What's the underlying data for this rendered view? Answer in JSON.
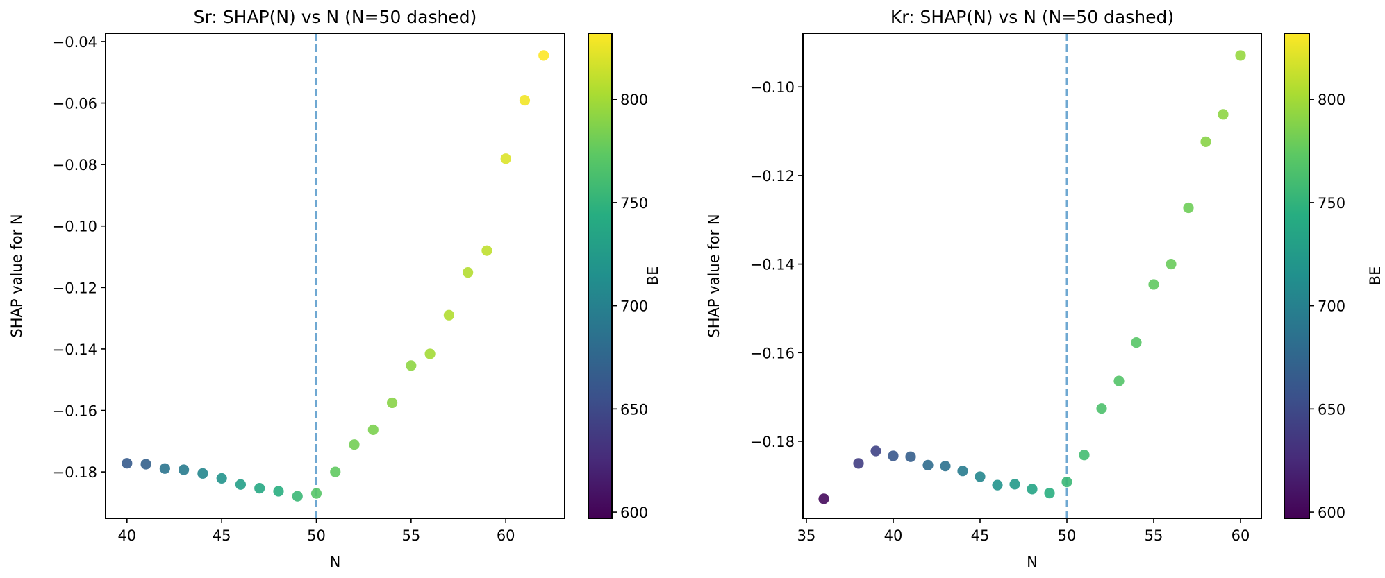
{
  "chart_data": [
    {
      "type": "scatter",
      "title": "Sr: SHAP(N) vs N (N=50 dashed)",
      "xlabel": "N",
      "ylabel": "SHAP value for N",
      "xlim": [
        38.87,
        63.11
      ],
      "ylim": [
        -0.1951,
        -0.0373
      ],
      "xticks": [
        40,
        45,
        50,
        55,
        60
      ],
      "xtick_labels": [
        "40",
        "45",
        "50",
        "55",
        "60"
      ],
      "yticks": [
        -0.18,
        -0.16,
        -0.14,
        -0.12,
        -0.1,
        -0.08,
        -0.06,
        -0.04
      ],
      "ytick_labels": [
        "−0.18",
        "−0.16",
        "−0.14",
        "−0.12",
        "−0.10",
        "−0.08",
        "−0.06",
        "−0.04"
      ],
      "grid": false,
      "reference_line": {
        "x": 50,
        "style": "dashed",
        "color": "#6fa8d2"
      },
      "colorbar": {
        "label": "BE",
        "colormap": "viridis",
        "range": [
          597,
          832
        ],
        "ticks": [
          600,
          650,
          700,
          750,
          800
        ],
        "tick_labels": [
          "600",
          "650",
          "700",
          "750",
          "800"
        ]
      },
      "points": [
        {
          "x": 40,
          "y": -0.1772,
          "c": 665
        },
        {
          "x": 41,
          "y": -0.1775,
          "c": 670
        },
        {
          "x": 42,
          "y": -0.1789,
          "c": 688
        },
        {
          "x": 43,
          "y": -0.1793,
          "c": 695
        },
        {
          "x": 44,
          "y": -0.1805,
          "c": 705
        },
        {
          "x": 45,
          "y": -0.1821,
          "c": 718
        },
        {
          "x": 46,
          "y": -0.1841,
          "c": 730
        },
        {
          "x": 47,
          "y": -0.1853,
          "c": 738
        },
        {
          "x": 48,
          "y": -0.1863,
          "c": 745
        },
        {
          "x": 49,
          "y": -0.1879,
          "c": 755
        },
        {
          "x": 50,
          "y": -0.187,
          "c": 770
        },
        {
          "x": 51,
          "y": -0.18,
          "c": 775
        },
        {
          "x": 52,
          "y": -0.1711,
          "c": 782
        },
        {
          "x": 53,
          "y": -0.1663,
          "c": 785
        },
        {
          "x": 54,
          "y": -0.1575,
          "c": 790
        },
        {
          "x": 55,
          "y": -0.1454,
          "c": 792
        },
        {
          "x": 56,
          "y": -0.1416,
          "c": 800
        },
        {
          "x": 57,
          "y": -0.129,
          "c": 805
        },
        {
          "x": 58,
          "y": -0.1151,
          "c": 806
        },
        {
          "x": 59,
          "y": -0.108,
          "c": 810
        },
        {
          "x": 60,
          "y": -0.0781,
          "c": 820
        },
        {
          "x": 61,
          "y": -0.0591,
          "c": 828
        },
        {
          "x": 62,
          "y": -0.0445,
          "c": 832
        }
      ]
    },
    {
      "type": "scatter",
      "title": "Kr: SHAP(N) vs N (N=50 dashed)",
      "xlabel": "N",
      "ylabel": "SHAP value for N",
      "xlim": [
        34.8,
        61.2
      ],
      "ylim": [
        -0.1974,
        -0.0879
      ],
      "xticks": [
        35,
        40,
        45,
        50,
        55,
        60
      ],
      "xtick_labels": [
        "35",
        "40",
        "45",
        "50",
        "55",
        "60"
      ],
      "yticks": [
        -0.18,
        -0.16,
        -0.14,
        -0.12,
        -0.1
      ],
      "ytick_labels": [
        "−0.18",
        "−0.16",
        "−0.14",
        "−0.12",
        "−0.10"
      ],
      "grid": false,
      "reference_line": {
        "x": 50,
        "style": "dashed",
        "color": "#6fa8d2"
      },
      "colorbar": {
        "label": "BE",
        "colormap": "viridis",
        "range": [
          597,
          832
        ],
        "ticks": [
          600,
          650,
          700,
          750,
          800
        ],
        "tick_labels": [
          "600",
          "650",
          "700",
          "750",
          "800"
        ]
      },
      "points": [
        {
          "x": 36,
          "y": -0.193,
          "c": 603
        },
        {
          "x": 38,
          "y": -0.185,
          "c": 640
        },
        {
          "x": 39,
          "y": -0.1822,
          "c": 645
        },
        {
          "x": 40,
          "y": -0.1833,
          "c": 662
        },
        {
          "x": 41,
          "y": -0.1835,
          "c": 668
        },
        {
          "x": 42,
          "y": -0.1854,
          "c": 680
        },
        {
          "x": 43,
          "y": -0.1856,
          "c": 685
        },
        {
          "x": 44,
          "y": -0.1867,
          "c": 695
        },
        {
          "x": 45,
          "y": -0.188,
          "c": 705
        },
        {
          "x": 46,
          "y": -0.1899,
          "c": 718
        },
        {
          "x": 47,
          "y": -0.1897,
          "c": 725
        },
        {
          "x": 48,
          "y": -0.1908,
          "c": 735
        },
        {
          "x": 49,
          "y": -0.1917,
          "c": 745
        },
        {
          "x": 50,
          "y": -0.1892,
          "c": 755
        },
        {
          "x": 51,
          "y": -0.1831,
          "c": 760
        },
        {
          "x": 52,
          "y": -0.1726,
          "c": 765
        },
        {
          "x": 53,
          "y": -0.1664,
          "c": 768
        },
        {
          "x": 54,
          "y": -0.1577,
          "c": 770
        },
        {
          "x": 55,
          "y": -0.1446,
          "c": 775
        },
        {
          "x": 56,
          "y": -0.14,
          "c": 778
        },
        {
          "x": 57,
          "y": -0.1273,
          "c": 780
        },
        {
          "x": 58,
          "y": -0.1124,
          "c": 790
        },
        {
          "x": 59,
          "y": -0.1062,
          "c": 792
        },
        {
          "x": 60,
          "y": -0.0929,
          "c": 795
        }
      ]
    }
  ]
}
